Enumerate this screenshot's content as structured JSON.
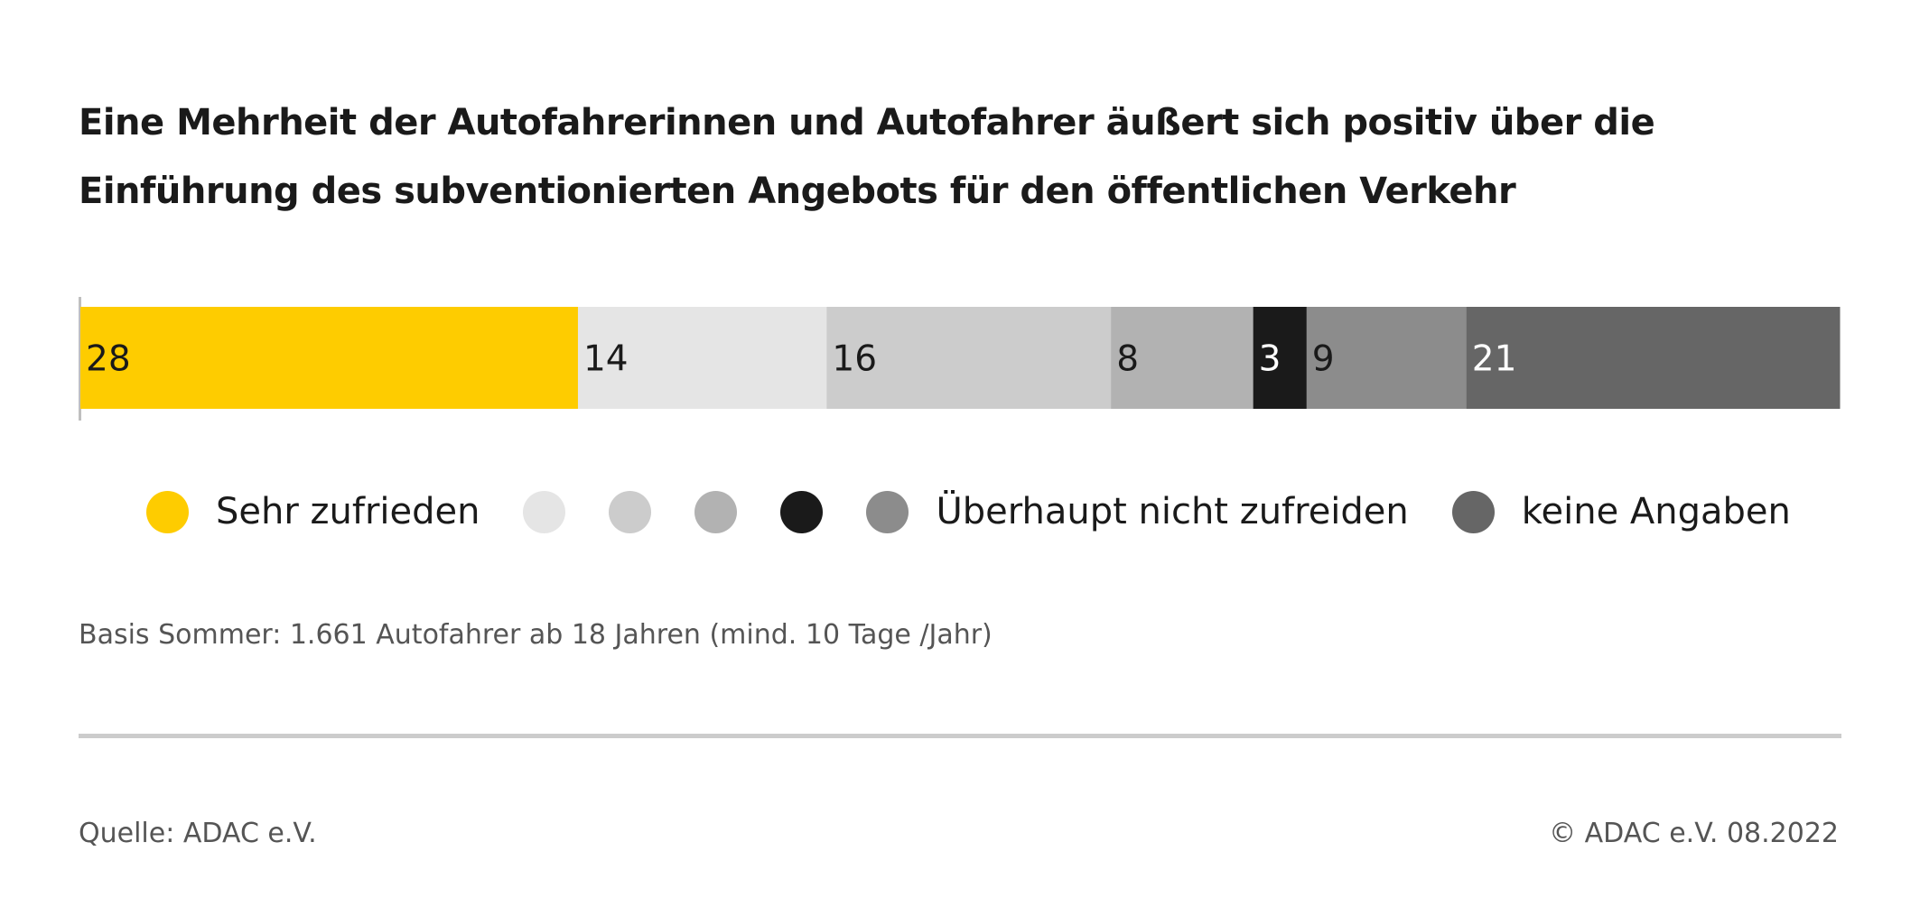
{
  "title": "Eine Mehrheit der Autofahrerinnen und Autofahrer äußert sich positiv über die Einführung des subventionierten Angebots für den öffentlichen Verkehr",
  "note": "Basis Sommer: 1.661 Autofahrer ab 18 Jahren (mind. 10 Tage /Jahr)",
  "source": "Quelle: ADAC e.V.",
  "copyright": "© ADAC e.V. 08.2022",
  "chart_data": {
    "type": "bar",
    "orientation": "horizontal-stacked",
    "title": "Eine Mehrheit der Autofahrerinnen und Autofahrer äußert sich positiv über die Einführung des subventionierten Angebots für den öffentlichen Verkehr",
    "xlim": [
      0,
      99
    ],
    "series": [
      {
        "name": "Sehr zufrieden",
        "value": 28,
        "color": "#fecc00",
        "label_color": "#1a1a1a"
      },
      {
        "name": "",
        "value": 14,
        "color": "#e5e5e5",
        "label_color": "#1a1a1a"
      },
      {
        "name": "",
        "value": 16,
        "color": "#cccccc",
        "label_color": "#1a1a1a"
      },
      {
        "name": "",
        "value": 8,
        "color": "#b2b2b2",
        "label_color": "#1a1a1a"
      },
      {
        "name": "",
        "value": 3,
        "color": "#1a1a1a",
        "label_color": "#ffffff"
      },
      {
        "name": "Überhaupt nicht zufreiden",
        "value": 9,
        "color": "#8c8c8c",
        "label_color": "#1a1a1a"
      },
      {
        "name": "keine Angaben",
        "value": 21,
        "color": "#666666",
        "label_color": "#ffffff"
      }
    ],
    "legend_position": "bottom",
    "grid": false
  }
}
